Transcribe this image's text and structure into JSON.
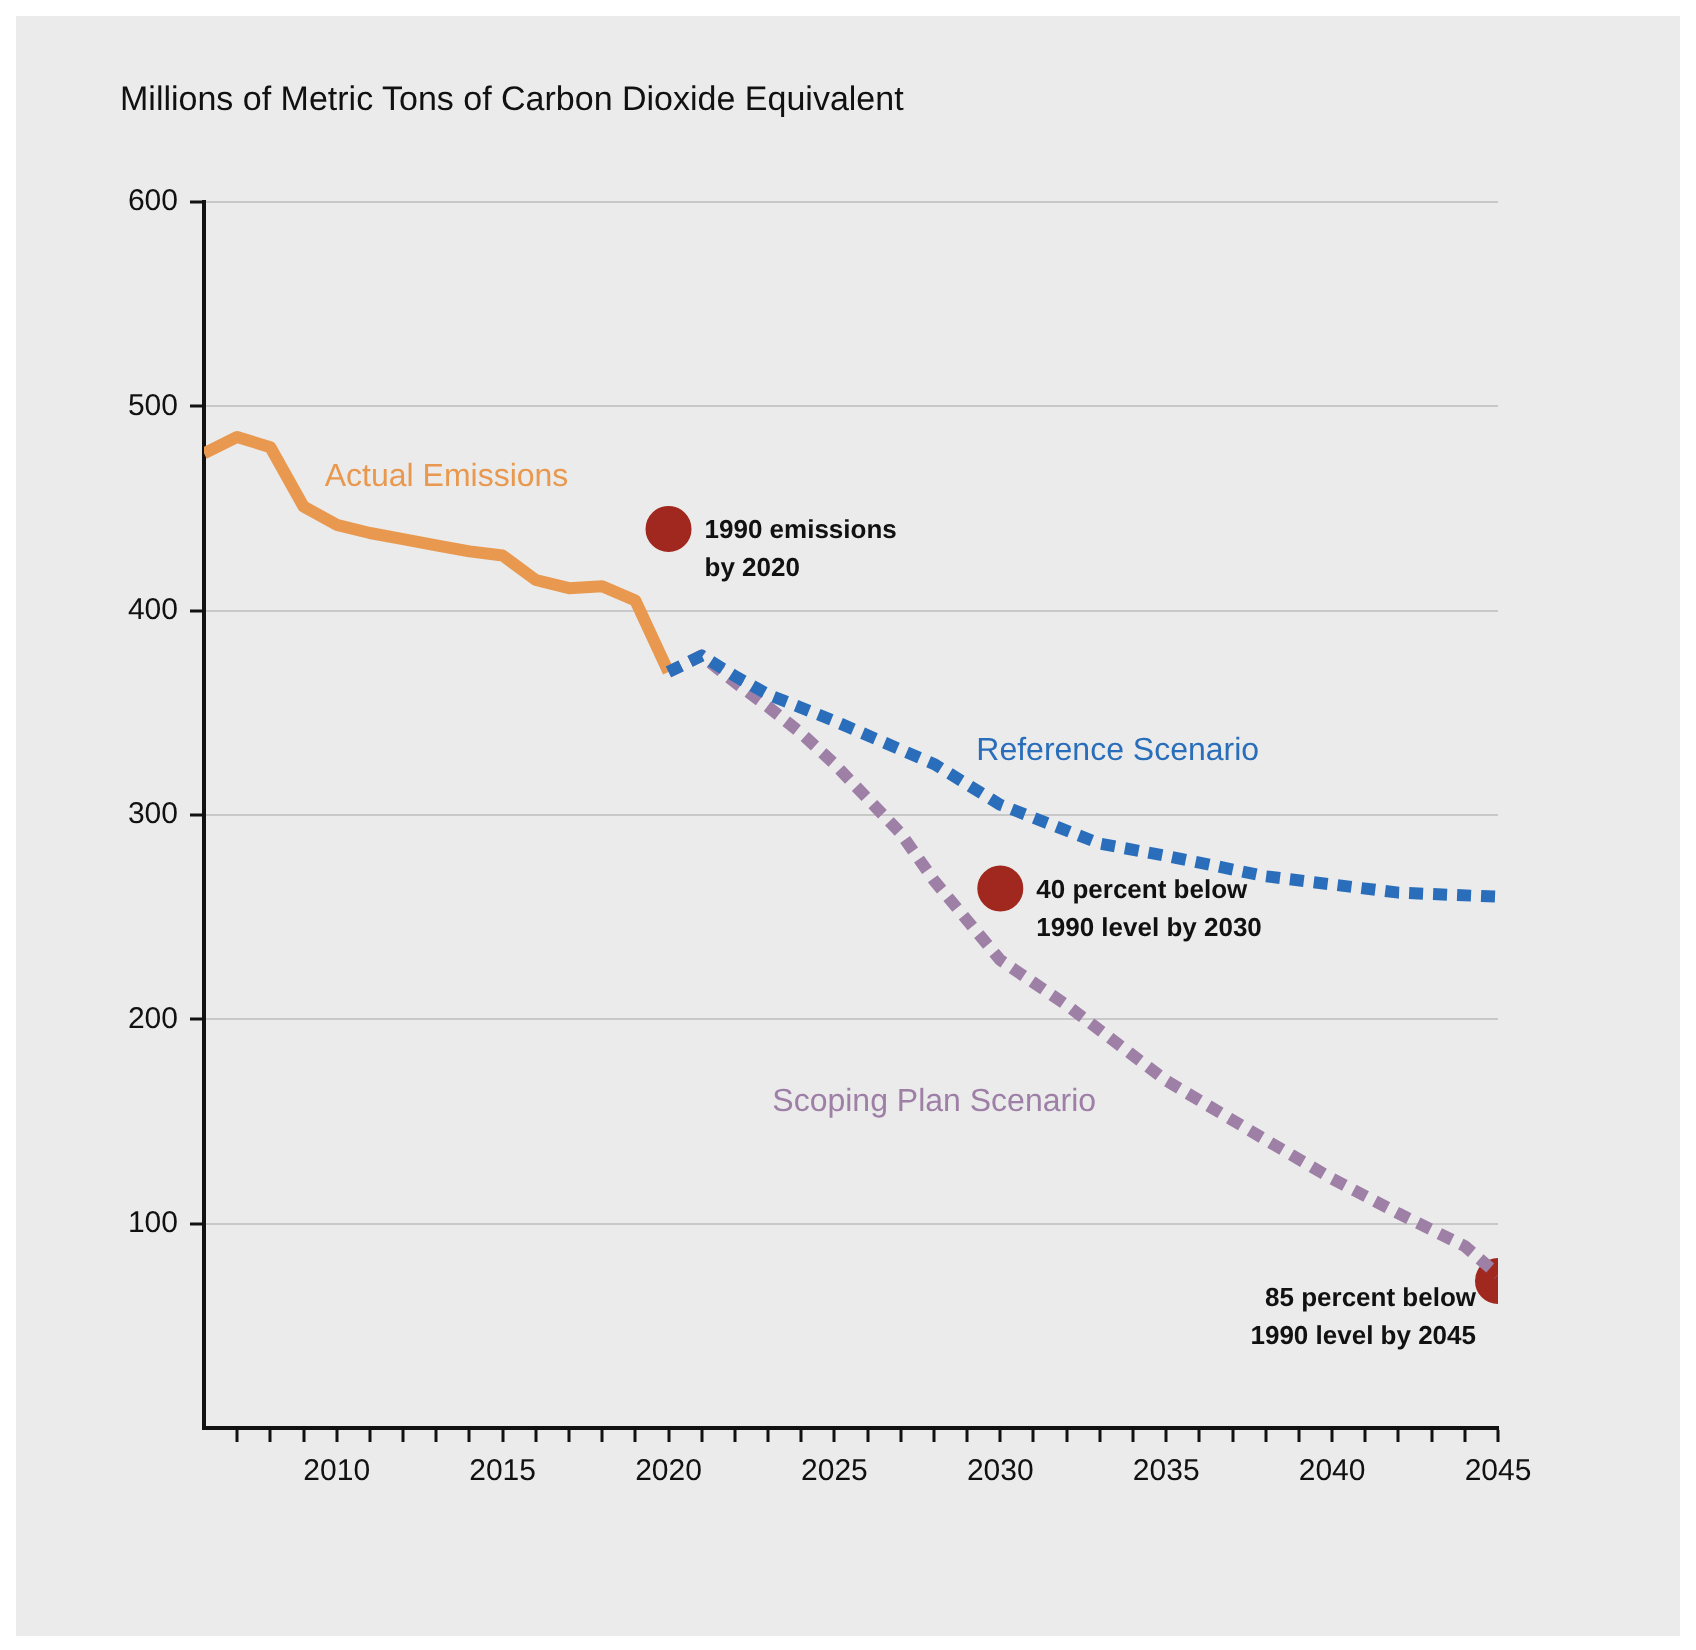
{
  "chart_data": {
    "type": "line",
    "title": "Millions of Metric Tons of Carbon Dioxide Equivalent",
    "xlim": [
      2006,
      2045
    ],
    "xticks": [
      {
        "value": 2007,
        "label": null
      },
      {
        "value": 2008,
        "label": null
      },
      {
        "value": 2009,
        "label": null
      },
      2010,
      {
        "value": 2011,
        "label": null
      },
      {
        "value": 2012,
        "label": null
      },
      {
        "value": 2013,
        "label": null
      },
      {
        "value": 2014,
        "label": null
      },
      2015,
      {
        "value": 2016,
        "label": null
      },
      {
        "value": 2017,
        "label": null
      },
      {
        "value": 2018,
        "label": null
      },
      {
        "value": 2019,
        "label": null
      },
      2020,
      {
        "value": 2021,
        "label": null
      },
      {
        "value": 2022,
        "label": null
      },
      {
        "value": 2023,
        "label": null
      },
      {
        "value": 2024,
        "label": null
      },
      2025,
      {
        "value": 2026,
        "label": null
      },
      {
        "value": 2027,
        "label": null
      },
      {
        "value": 2028,
        "label": null
      },
      {
        "value": 2029,
        "label": null
      },
      2030,
      {
        "value": 2031,
        "label": null
      },
      {
        "value": 2032,
        "label": null
      },
      {
        "value": 2033,
        "label": null
      },
      {
        "value": 2034,
        "label": null
      },
      2035,
      {
        "value": 2036,
        "label": null
      },
      {
        "value": 2037,
        "label": null
      },
      {
        "value": 2038,
        "label": null
      },
      {
        "value": 2039,
        "label": null
      },
      2040,
      {
        "value": 2041,
        "label": null
      },
      {
        "value": 2042,
        "label": null
      },
      {
        "value": 2043,
        "label": null
      },
      {
        "value": 2044,
        "label": null
      },
      2045
    ],
    "ylim": [
      0,
      600
    ],
    "yticks": [
      100,
      200,
      300,
      400,
      500,
      600
    ],
    "grid": "y",
    "legend": false,
    "marker": "none",
    "series": [
      {
        "name": "Reference Scenario",
        "color": "#2a6ebb",
        "line_style": "dotted",
        "x": [
          2020,
          2021,
          2022,
          2023,
          2025,
          2028,
          2030,
          2033,
          2035,
          2038,
          2040,
          2042,
          2045
        ],
        "values": [
          370,
          378,
          368,
          359,
          346,
          325,
          305,
          286,
          280,
          270,
          266,
          262,
          260
        ]
      },
      {
        "name": "Scoping Plan Scenario",
        "color": "#9e7fa6",
        "line_style": "dotted",
        "x": [
          2020,
          2021,
          2022,
          2023,
          2024,
          2025,
          2027,
          2028,
          2030,
          2032,
          2035,
          2038,
          2040,
          2042,
          2044,
          2045
        ],
        "values": [
          370,
          378,
          365,
          353,
          340,
          325,
          291,
          268,
          229,
          207,
          170,
          141,
          122,
          105,
          89,
          75
        ]
      },
      {
        "name": "Actual Emissions",
        "color": "#e8994f",
        "line_style": "solid",
        "x": [
          2006,
          2007,
          2008,
          2009,
          2010,
          2011,
          2012,
          2013,
          2014,
          2015,
          2016,
          2017,
          2018,
          2019,
          2020
        ],
        "values": [
          477,
          485,
          480,
          451,
          442,
          438,
          435,
          432,
          429,
          427,
          415,
          411,
          412,
          405,
          370
        ]
      },
      {
        "type": "scatter",
        "marker": "circle",
        "color": "#a0281e",
        "x": [
          2020,
          2030,
          2045
        ],
        "values": [
          440,
          264,
          72
        ]
      }
    ],
    "annotations": [
      {
        "text": "1990 emissions\nby 2020",
        "x": 2020,
        "y": 440
      },
      {
        "text": "40 percent below\n1990 level by 2030",
        "x": 2030,
        "y": 264
      },
      {
        "text": "85 percent below\n1990 level by 2045",
        "x": 2045,
        "y": 72
      }
    ]
  }
}
